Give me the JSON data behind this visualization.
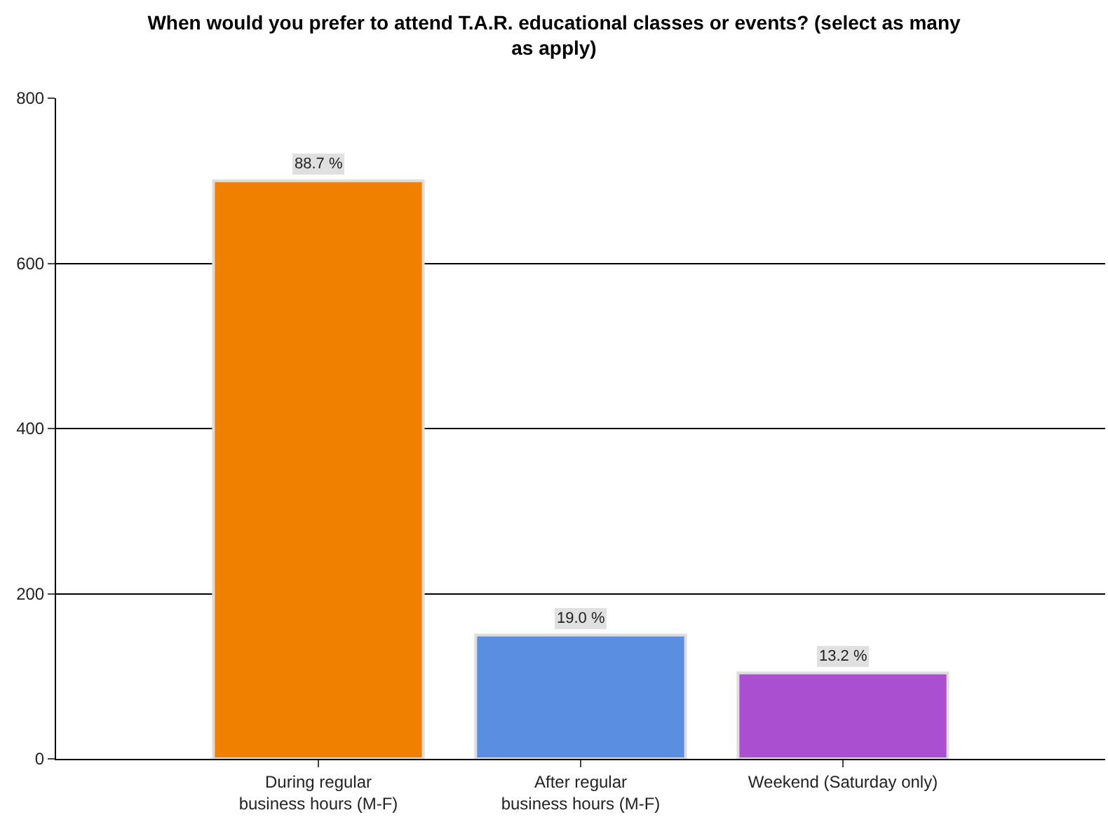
{
  "chart_data": {
    "type": "bar",
    "title": "When would you prefer to attend T.A.R. educational classes or events? (select as many\nas apply)",
    "categories": [
      "During regular\nbusiness hours (M-F)",
      "After regular\nbusiness hours (M-F)",
      "Weekend (Saturday only)"
    ],
    "values": [
      700,
      150,
      104
    ],
    "colors": [
      "#f08000",
      "#5a8ee0",
      "#a94fd0"
    ],
    "annotations": [
      {
        "text": "88.7 %",
        "x": "During regular\nbusiness hours (M-F)",
        "y": 700
      },
      {
        "text": "19.0 %",
        "x": "After regular\nbusiness hours (M-F)",
        "y": 150
      },
      {
        "text": "13.2 %",
        "x": "Weekend (Saturday only)",
        "y": 104
      }
    ],
    "ylim": [
      0,
      800
    ],
    "yticks": [
      0,
      200,
      400,
      600,
      800
    ],
    "grid": "y",
    "legend": false
  }
}
